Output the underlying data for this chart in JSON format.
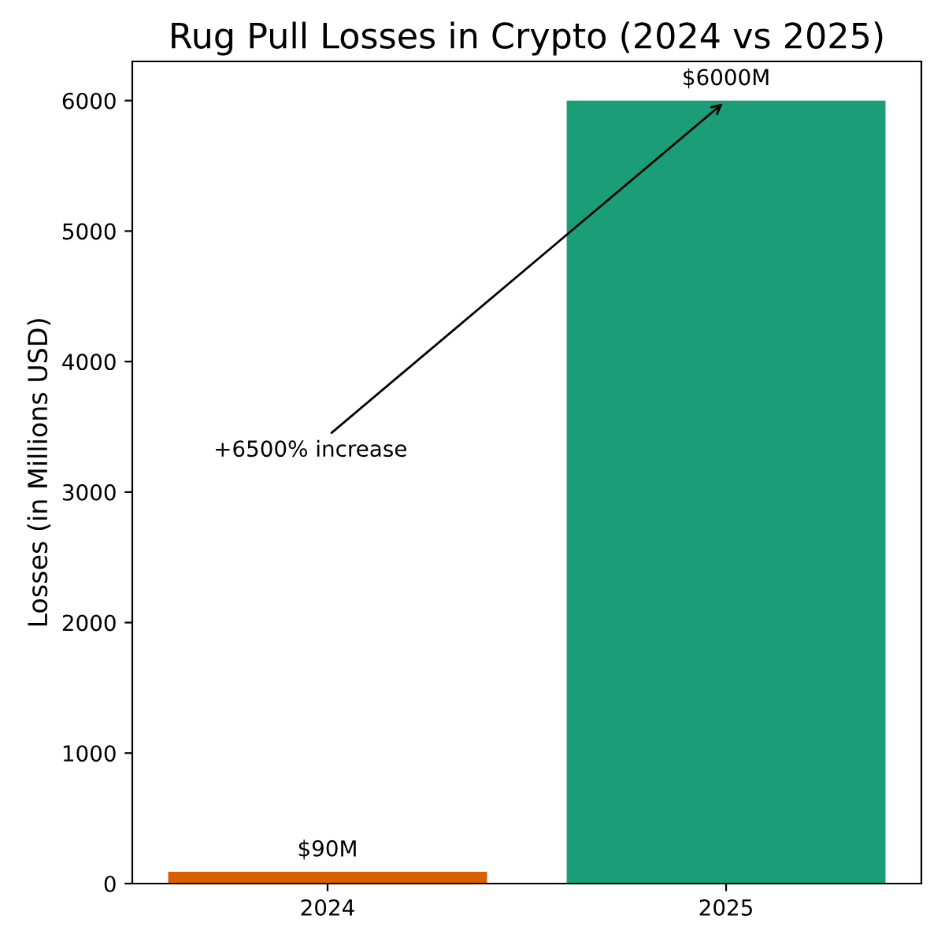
{
  "chart_data": {
    "type": "bar",
    "title": "Rug Pull Losses in Crypto (2024 vs 2025)",
    "ylabel": "Losses (in Millions USD)",
    "categories": [
      "2024",
      "2025"
    ],
    "values": [
      90,
      6000
    ],
    "colors": [
      "#d95f02",
      "#1b9e77"
    ],
    "value_labels": [
      "$90M",
      "$6000M"
    ],
    "ylim": [
      0,
      6300
    ],
    "yticks": [
      0,
      1000,
      2000,
      3000,
      4000,
      5000,
      6000
    ],
    "annotations": [
      {
        "text": "+6500% increase",
        "x": "2025",
        "y": 6000
      }
    ]
  }
}
